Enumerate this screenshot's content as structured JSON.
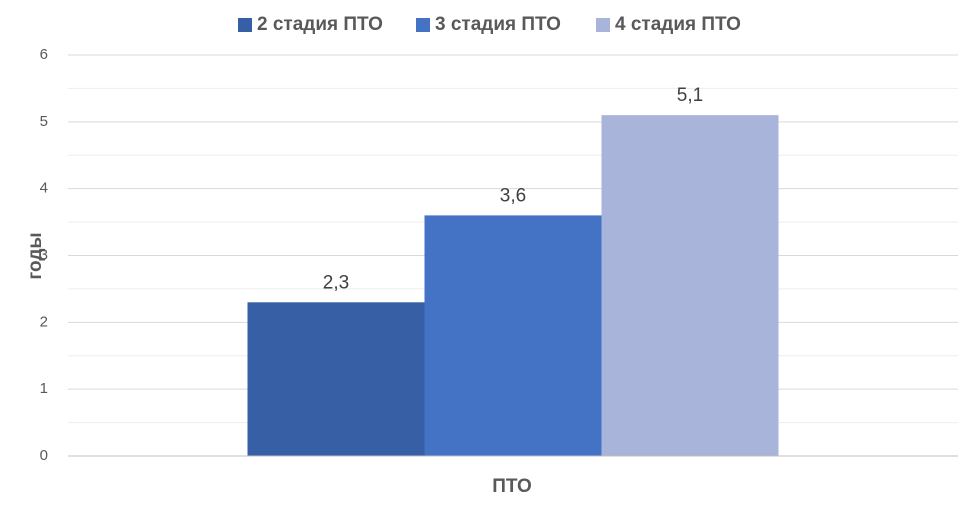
{
  "chart_data": {
    "type": "bar",
    "title": "",
    "categories": [
      "ПТО"
    ],
    "series": [
      {
        "name": "2 стадия ПТО",
        "values": [
          2.3
        ],
        "color": "#365FA5",
        "data_label": "2,3"
      },
      {
        "name": "3 стадия ПТО",
        "values": [
          3.6
        ],
        "color": "#4472C4",
        "data_label": "3,6"
      },
      {
        "name": "4 стадия ПТО",
        "values": [
          5.1
        ],
        "color": "#A9B4DA",
        "data_label": "5,1"
      }
    ],
    "xlabel": "ПТО",
    "ylabel": "годы",
    "ylim": [
      0,
      6
    ],
    "yticks": [
      "0",
      "1",
      "2",
      "3",
      "4",
      "5",
      "6"
    ],
    "grid": true,
    "minor_grid": true,
    "legend_position": "top",
    "gridline_color": "#D9D9D9",
    "minor_gridline_color": "#EDEDED",
    "axis_line_color": "#BFBFBF"
  }
}
